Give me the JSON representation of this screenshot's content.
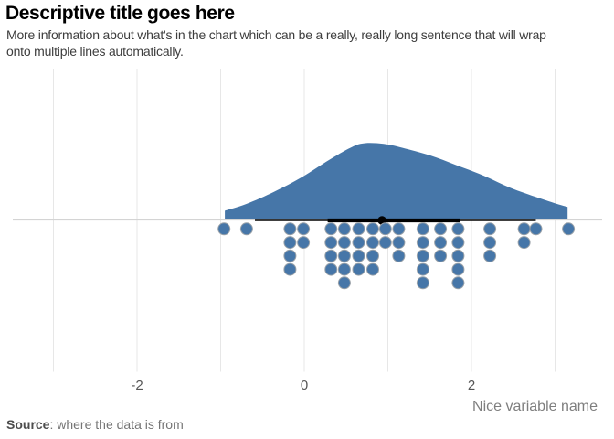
{
  "header": {
    "title": "Descriptive title goes here",
    "subtitle_line1": "More information about what's in the chart which can be a really, really long sentence that will wrap",
    "subtitle_line2": "onto multiple lines automatically."
  },
  "axis": {
    "tick_labels": [
      "-2",
      "0",
      "2"
    ],
    "title": "Nice variable name"
  },
  "footer": {
    "source_label": "Source",
    "source_text": ": where the data is from"
  },
  "colors": {
    "series_blue": "#4676a8",
    "dot_outline": "#99a1a8",
    "gridline": "#e7e7e7",
    "axis_line": "#d4d4d4",
    "summary_black": "#000000"
  },
  "chart_data": {
    "type": "raincloud",
    "description": "Half-violin density curve sitting on the x axis, with a dot histogram of the 50 individual observations hanging below the axis, plus a black range line with thick interquartile segment and a median point marker.",
    "title": "Descriptive title goes here",
    "xlabel": "Nice variable name",
    "legend": "none",
    "x_axis": {
      "tick_values": [
        -2,
        0,
        2
      ],
      "gridline_values": [
        -3,
        -2,
        -1,
        0,
        1,
        2,
        3
      ],
      "range": [
        -3.49,
        3.7
      ]
    },
    "density_curve": {
      "x": [
        -0.95,
        -0.69,
        -0.36,
        -0.03,
        0.3,
        0.57,
        0.73,
        0.95,
        1.17,
        1.5,
        1.82,
        2.15,
        2.47,
        2.8,
        3.02,
        3.15
      ],
      "height": [
        0.11,
        0.2,
        0.36,
        0.55,
        0.78,
        0.95,
        1.0,
        0.99,
        0.94,
        0.84,
        0.71,
        0.57,
        0.41,
        0.28,
        0.2,
        0.16
      ]
    },
    "dot_columns": [
      {
        "x": -0.96,
        "count": 1
      },
      {
        "x": -0.69,
        "count": 1
      },
      {
        "x": -0.17,
        "count": 4
      },
      {
        "x": -0.01,
        "count": 2
      },
      {
        "x": 0.32,
        "count": 4
      },
      {
        "x": 0.48,
        "count": 5
      },
      {
        "x": 0.65,
        "count": 4
      },
      {
        "x": 0.82,
        "count": 4
      },
      {
        "x": 0.97,
        "count": 2
      },
      {
        "x": 1.13,
        "count": 3
      },
      {
        "x": 1.42,
        "count": 5
      },
      {
        "x": 1.63,
        "count": 3
      },
      {
        "x": 1.84,
        "count": 5
      },
      {
        "x": 2.22,
        "count": 3
      },
      {
        "x": 2.63,
        "count": 2
      },
      {
        "x": 2.77,
        "count": 1
      },
      {
        "x": 3.16,
        "count": 1
      }
    ],
    "summary": {
      "range_min": -0.59,
      "range_max": 2.77,
      "thick_min": 0.28,
      "thick_max": 1.86,
      "median": 0.93
    }
  }
}
